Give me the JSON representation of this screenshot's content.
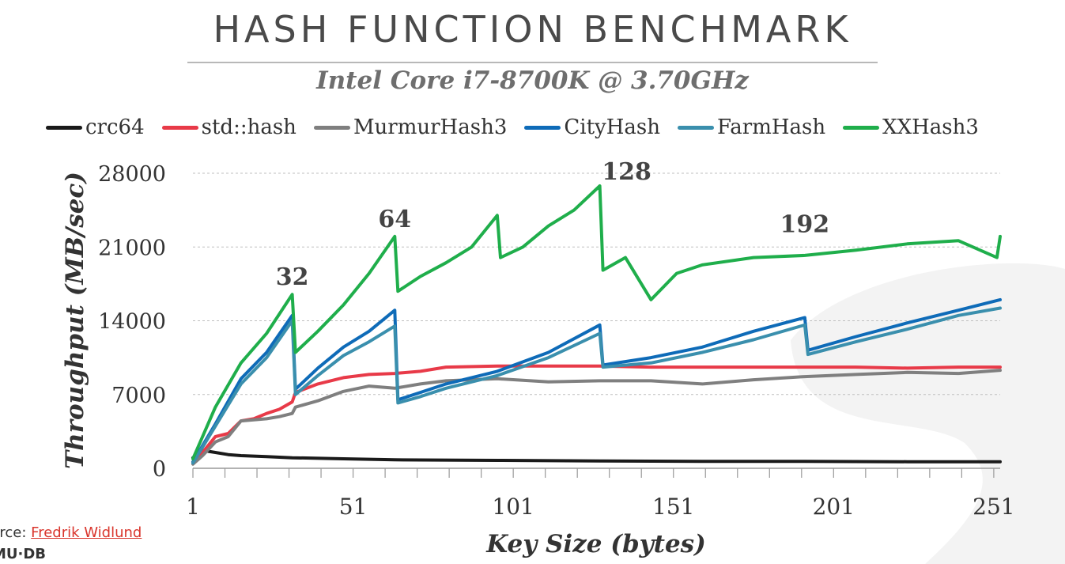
{
  "slide": {
    "title": "HASH FUNCTION BENCHMARK",
    "subtitle": "Intel Core i7-8700K @ 3.70GHz",
    "source_prefix": "urce: ",
    "source_link": "Fredrik Widlund",
    "logo": "MU·DB"
  },
  "colors": {
    "crc64": "#1a1a1a",
    "std::hash": "#e83a48",
    "MurmurHash3": "#7f7f7f",
    "CityHash": "#0e6bb8",
    "FarmHash": "#3a8fad",
    "XXHash3": "#1fae4b",
    "grid": "#bfbfbf",
    "text": "#333333"
  },
  "chart_data": {
    "type": "line",
    "title": "",
    "xlabel": "Key Size (bytes)",
    "ylabel": "Throughput (MB/sec)",
    "xlim": [
      1,
      253
    ],
    "ylim": [
      0,
      28000
    ],
    "xticks": [
      1,
      51,
      101,
      151,
      201,
      251
    ],
    "yticks": [
      0,
      7000,
      14000,
      21000,
      28000
    ],
    "grid": "horizontal dashed",
    "legend_position": "top",
    "annotations": [
      {
        "text": "32",
        "x": 32,
        "y": 16500
      },
      {
        "text": "64",
        "x": 64,
        "y": 22000
      },
      {
        "text": "128",
        "x": 128,
        "y": 26500
      },
      {
        "text": "192",
        "x": 192,
        "y": 21500
      }
    ],
    "series": [
      {
        "name": "crc64",
        "points": [
          [
            1,
            1000
          ],
          [
            4,
            1700
          ],
          [
            8,
            1500
          ],
          [
            12,
            1300
          ],
          [
            16,
            1200
          ],
          [
            24,
            1100
          ],
          [
            32,
            1000
          ],
          [
            48,
            900
          ],
          [
            64,
            800
          ],
          [
            96,
            750
          ],
          [
            128,
            700
          ],
          [
            160,
            650
          ],
          [
            192,
            650
          ],
          [
            224,
            620
          ],
          [
            253,
            620
          ]
        ]
      },
      {
        "name": "std::hash",
        "points": [
          [
            1,
            600
          ],
          [
            4,
            1500
          ],
          [
            8,
            3000
          ],
          [
            12,
            3300
          ],
          [
            16,
            4500
          ],
          [
            20,
            4700
          ],
          [
            24,
            5200
          ],
          [
            28,
            5600
          ],
          [
            32,
            6300
          ],
          [
            33,
            7200
          ],
          [
            40,
            8000
          ],
          [
            48,
            8600
          ],
          [
            56,
            8900
          ],
          [
            64,
            9000
          ],
          [
            72,
            9200
          ],
          [
            80,
            9600
          ],
          [
            96,
            9700
          ],
          [
            112,
            9700
          ],
          [
            128,
            9700
          ],
          [
            144,
            9600
          ],
          [
            160,
            9600
          ],
          [
            176,
            9600
          ],
          [
            192,
            9600
          ],
          [
            208,
            9600
          ],
          [
            224,
            9500
          ],
          [
            240,
            9600
          ],
          [
            253,
            9600
          ]
        ]
      },
      {
        "name": "MurmurHash3",
        "points": [
          [
            1,
            400
          ],
          [
            4,
            1200
          ],
          [
            8,
            2500
          ],
          [
            12,
            3000
          ],
          [
            16,
            4500
          ],
          [
            20,
            4600
          ],
          [
            24,
            4700
          ],
          [
            28,
            4900
          ],
          [
            32,
            5200
          ],
          [
            33,
            5800
          ],
          [
            40,
            6400
          ],
          [
            48,
            7300
          ],
          [
            56,
            7800
          ],
          [
            64,
            7600
          ],
          [
            72,
            8000
          ],
          [
            80,
            8300
          ],
          [
            96,
            8500
          ],
          [
            112,
            8200
          ],
          [
            128,
            8300
          ],
          [
            144,
            8300
          ],
          [
            160,
            8000
          ],
          [
            176,
            8400
          ],
          [
            192,
            8700
          ],
          [
            208,
            8900
          ],
          [
            224,
            9100
          ],
          [
            240,
            9000
          ],
          [
            253,
            9300
          ]
        ]
      },
      {
        "name": "CityHash",
        "points": [
          [
            1,
            600
          ],
          [
            8,
            4200
          ],
          [
            16,
            8500
          ],
          [
            24,
            11000
          ],
          [
            32,
            14500
          ],
          [
            33,
            7500
          ],
          [
            40,
            9500
          ],
          [
            48,
            11500
          ],
          [
            56,
            13000
          ],
          [
            64,
            15000
          ],
          [
            65,
            6500
          ],
          [
            72,
            7200
          ],
          [
            80,
            8000
          ],
          [
            96,
            9200
          ],
          [
            112,
            11000
          ],
          [
            128,
            13600
          ],
          [
            129,
            9800
          ],
          [
            144,
            10500
          ],
          [
            160,
            11500
          ],
          [
            176,
            13000
          ],
          [
            192,
            14300
          ],
          [
            193,
            11200
          ],
          [
            208,
            12500
          ],
          [
            224,
            13800
          ],
          [
            240,
            15000
          ],
          [
            253,
            16000
          ]
        ]
      },
      {
        "name": "FarmHash",
        "points": [
          [
            1,
            500
          ],
          [
            8,
            4000
          ],
          [
            16,
            8000
          ],
          [
            24,
            10500
          ],
          [
            32,
            14000
          ],
          [
            33,
            7000
          ],
          [
            40,
            8800
          ],
          [
            48,
            10700
          ],
          [
            56,
            12000
          ],
          [
            64,
            13500
          ],
          [
            65,
            6200
          ],
          [
            72,
            6800
          ],
          [
            80,
            7600
          ],
          [
            96,
            8800
          ],
          [
            112,
            10500
          ],
          [
            128,
            12800
          ],
          [
            129,
            9600
          ],
          [
            144,
            10000
          ],
          [
            160,
            11000
          ],
          [
            176,
            12200
          ],
          [
            192,
            13600
          ],
          [
            193,
            10800
          ],
          [
            208,
            12000
          ],
          [
            224,
            13200
          ],
          [
            240,
            14500
          ],
          [
            253,
            15200
          ]
        ]
      },
      {
        "name": "XXHash3",
        "points": [
          [
            1,
            900
          ],
          [
            8,
            5800
          ],
          [
            16,
            10000
          ],
          [
            24,
            12800
          ],
          [
            32,
            16500
          ],
          [
            33,
            11000
          ],
          [
            40,
            13000
          ],
          [
            48,
            15500
          ],
          [
            56,
            18500
          ],
          [
            64,
            22000
          ],
          [
            65,
            16800
          ],
          [
            72,
            18200
          ],
          [
            80,
            19500
          ],
          [
            88,
            21000
          ],
          [
            96,
            24000
          ],
          [
            97,
            20000
          ],
          [
            104,
            21000
          ],
          [
            112,
            23000
          ],
          [
            120,
            24500
          ],
          [
            128,
            26800
          ],
          [
            129,
            18800
          ],
          [
            136,
            20000
          ],
          [
            144,
            16000
          ],
          [
            152,
            18500
          ],
          [
            160,
            19300
          ],
          [
            176,
            20000
          ],
          [
            192,
            20200
          ],
          [
            208,
            20700
          ],
          [
            224,
            21300
          ],
          [
            240,
            21600
          ],
          [
            252,
            20000
          ],
          [
            253,
            22000
          ]
        ]
      }
    ]
  }
}
